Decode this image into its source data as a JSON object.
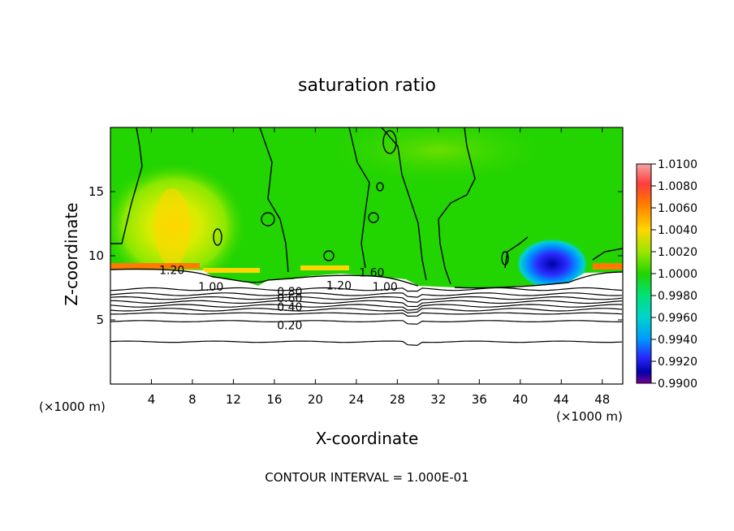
{
  "chart_data": {
    "type": "heatmap",
    "title": "saturation ratio",
    "xlabel": "X-coordinate",
    "ylabel": "Z-coordinate",
    "x_unit_left": "(×1000 m)",
    "x_unit_right": "(×1000 m)",
    "xlim": [
      0,
      50
    ],
    "ylim": [
      0,
      20
    ],
    "xticks": [
      4,
      8,
      12,
      16,
      20,
      24,
      28,
      32,
      36,
      40,
      44,
      48
    ],
    "yticks": [
      5,
      10,
      15
    ],
    "footer": "CONTOUR INTERVAL = 1.000E-01",
    "colorbar": {
      "min": 0.99,
      "max": 1.01,
      "labels": [
        "1.0100",
        "1.0080",
        "1.0060",
        "1.0040",
        "1.0020",
        "1.0000",
        "0.9980",
        "0.9960",
        "0.9940",
        "0.9920",
        "0.9900"
      ],
      "colors": [
        "#f4a5a5",
        "#ff3c3c",
        "#ff7a00",
        "#ffd700",
        "#9be600",
        "#22d400",
        "#00e07a",
        "#00d4cc",
        "#0098ff",
        "#2a2aff",
        "#0000a8",
        "#7a0095"
      ]
    },
    "contour_labels": [
      {
        "text": "1.20",
        "x": 6.0,
        "y": 8.9
      },
      {
        "text": "1.00",
        "x": 9.8,
        "y": 7.6
      },
      {
        "text": "1.60",
        "x": 25.5,
        "y": 8.7
      },
      {
        "text": "1.20",
        "x": 22.3,
        "y": 7.7
      },
      {
        "text": "1.00",
        "x": 26.8,
        "y": 7.6
      },
      {
        "text": "0.80",
        "x": 17.5,
        "y": 7.2
      },
      {
        "text": "0.60",
        "x": 17.5,
        "y": 6.7
      },
      {
        "text": "0.40",
        "x": 17.5,
        "y": 6.0
      },
      {
        "text": "0.20",
        "x": 17.5,
        "y": 4.6
      }
    ],
    "contour_levels_z": [
      7.4,
      7.0,
      6.7,
      6.4,
      6.1,
      5.8,
      5.5,
      4.9,
      3.3
    ],
    "features": [
      {
        "name": "supersaturated-west",
        "x": 6.5,
        "z": 12.5,
        "value": 1.004
      },
      {
        "name": "subsaturated-east",
        "x": 43.2,
        "z": 9.2,
        "value": 0.9915
      }
    ]
  }
}
